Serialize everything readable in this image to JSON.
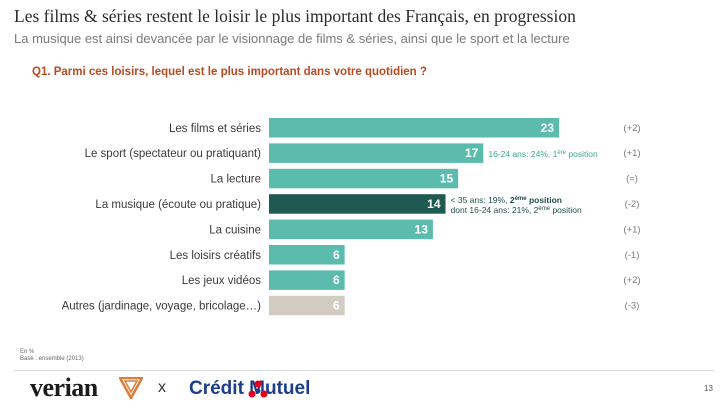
{
  "header": {
    "title": "Les films & séries restent le loisir le plus important des Français, en progression",
    "subtitle": "La musique est ainsi devancée par le visionnage de films & séries, ainsi que le sport et la lecture",
    "question": "Q1.  Parmi ces loisirs, lequel est le plus important dans votre quotidien ?"
  },
  "colors": {
    "teal": "#5bbcae",
    "dark_teal": "#1f5a52",
    "grey": "#d3ccc2",
    "note_teal": "#3ea596",
    "note_dark": "#1f4f49"
  },
  "chart_data": {
    "type": "bar",
    "orientation": "horizontal",
    "categories": [
      "Les films et séries",
      "Le sport (spectateur ou pratiquant)",
      "La lecture",
      "La musique (écoute ou pratique)",
      "La cuisine",
      "Les loisirs créatifs",
      "Les jeux vidéos",
      "Autres (jardinage, voyage, bricolage…)"
    ],
    "values": [
      23,
      17,
      15,
      14,
      13,
      6,
      6,
      6
    ],
    "value_labels": [
      "23",
      "17",
      "15",
      "14",
      "13",
      "6",
      "6",
      "6"
    ],
    "bar_colors": [
      "#5bbcae",
      "#5bbcae",
      "#5bbcae",
      "#1f5a52",
      "#5bbcae",
      "#5bbcae",
      "#5bbcae",
      "#d3ccc2"
    ],
    "changes": [
      "(+2)",
      "(+1)",
      "(=)",
      "(-2)",
      "(+1)",
      "(-1)",
      "(+2)",
      "(-3)"
    ],
    "xlim": [
      0,
      23
    ],
    "annotations": [
      {
        "category": "Le sport (spectateur ou pratiquant)",
        "lines": [
          [
            {
              "t": "16-24 ans: 24%, 1",
              "bold": false
            },
            {
              "t": "ère",
              "sup": true
            },
            {
              "t": " position",
              "bold": false
            }
          ]
        ],
        "color": "#3ea596"
      },
      {
        "category": "La musique (écoute ou pratique)",
        "lines": [
          [
            {
              "t": "< 35 ans: 19%, ",
              "bold": false
            },
            {
              "t": "2",
              "bold": true
            },
            {
              "t": "ème",
              "sup": true,
              "bold": true
            },
            {
              "t": " position",
              "bold": true
            }
          ],
          [
            {
              "t": "dont 16-24 ans: 21%, 2",
              "bold": false
            },
            {
              "t": "ème",
              "sup": true
            },
            {
              "t": " position",
              "bold": false
            }
          ]
        ],
        "color": "#1f4f49"
      }
    ]
  },
  "footer": {
    "notes": [
      "En %",
      "Base : ensemble (2013)"
    ],
    "brand_left": "verian",
    "separator": "x",
    "brand_right": "Crédit Mutuel",
    "page_number": "13"
  }
}
